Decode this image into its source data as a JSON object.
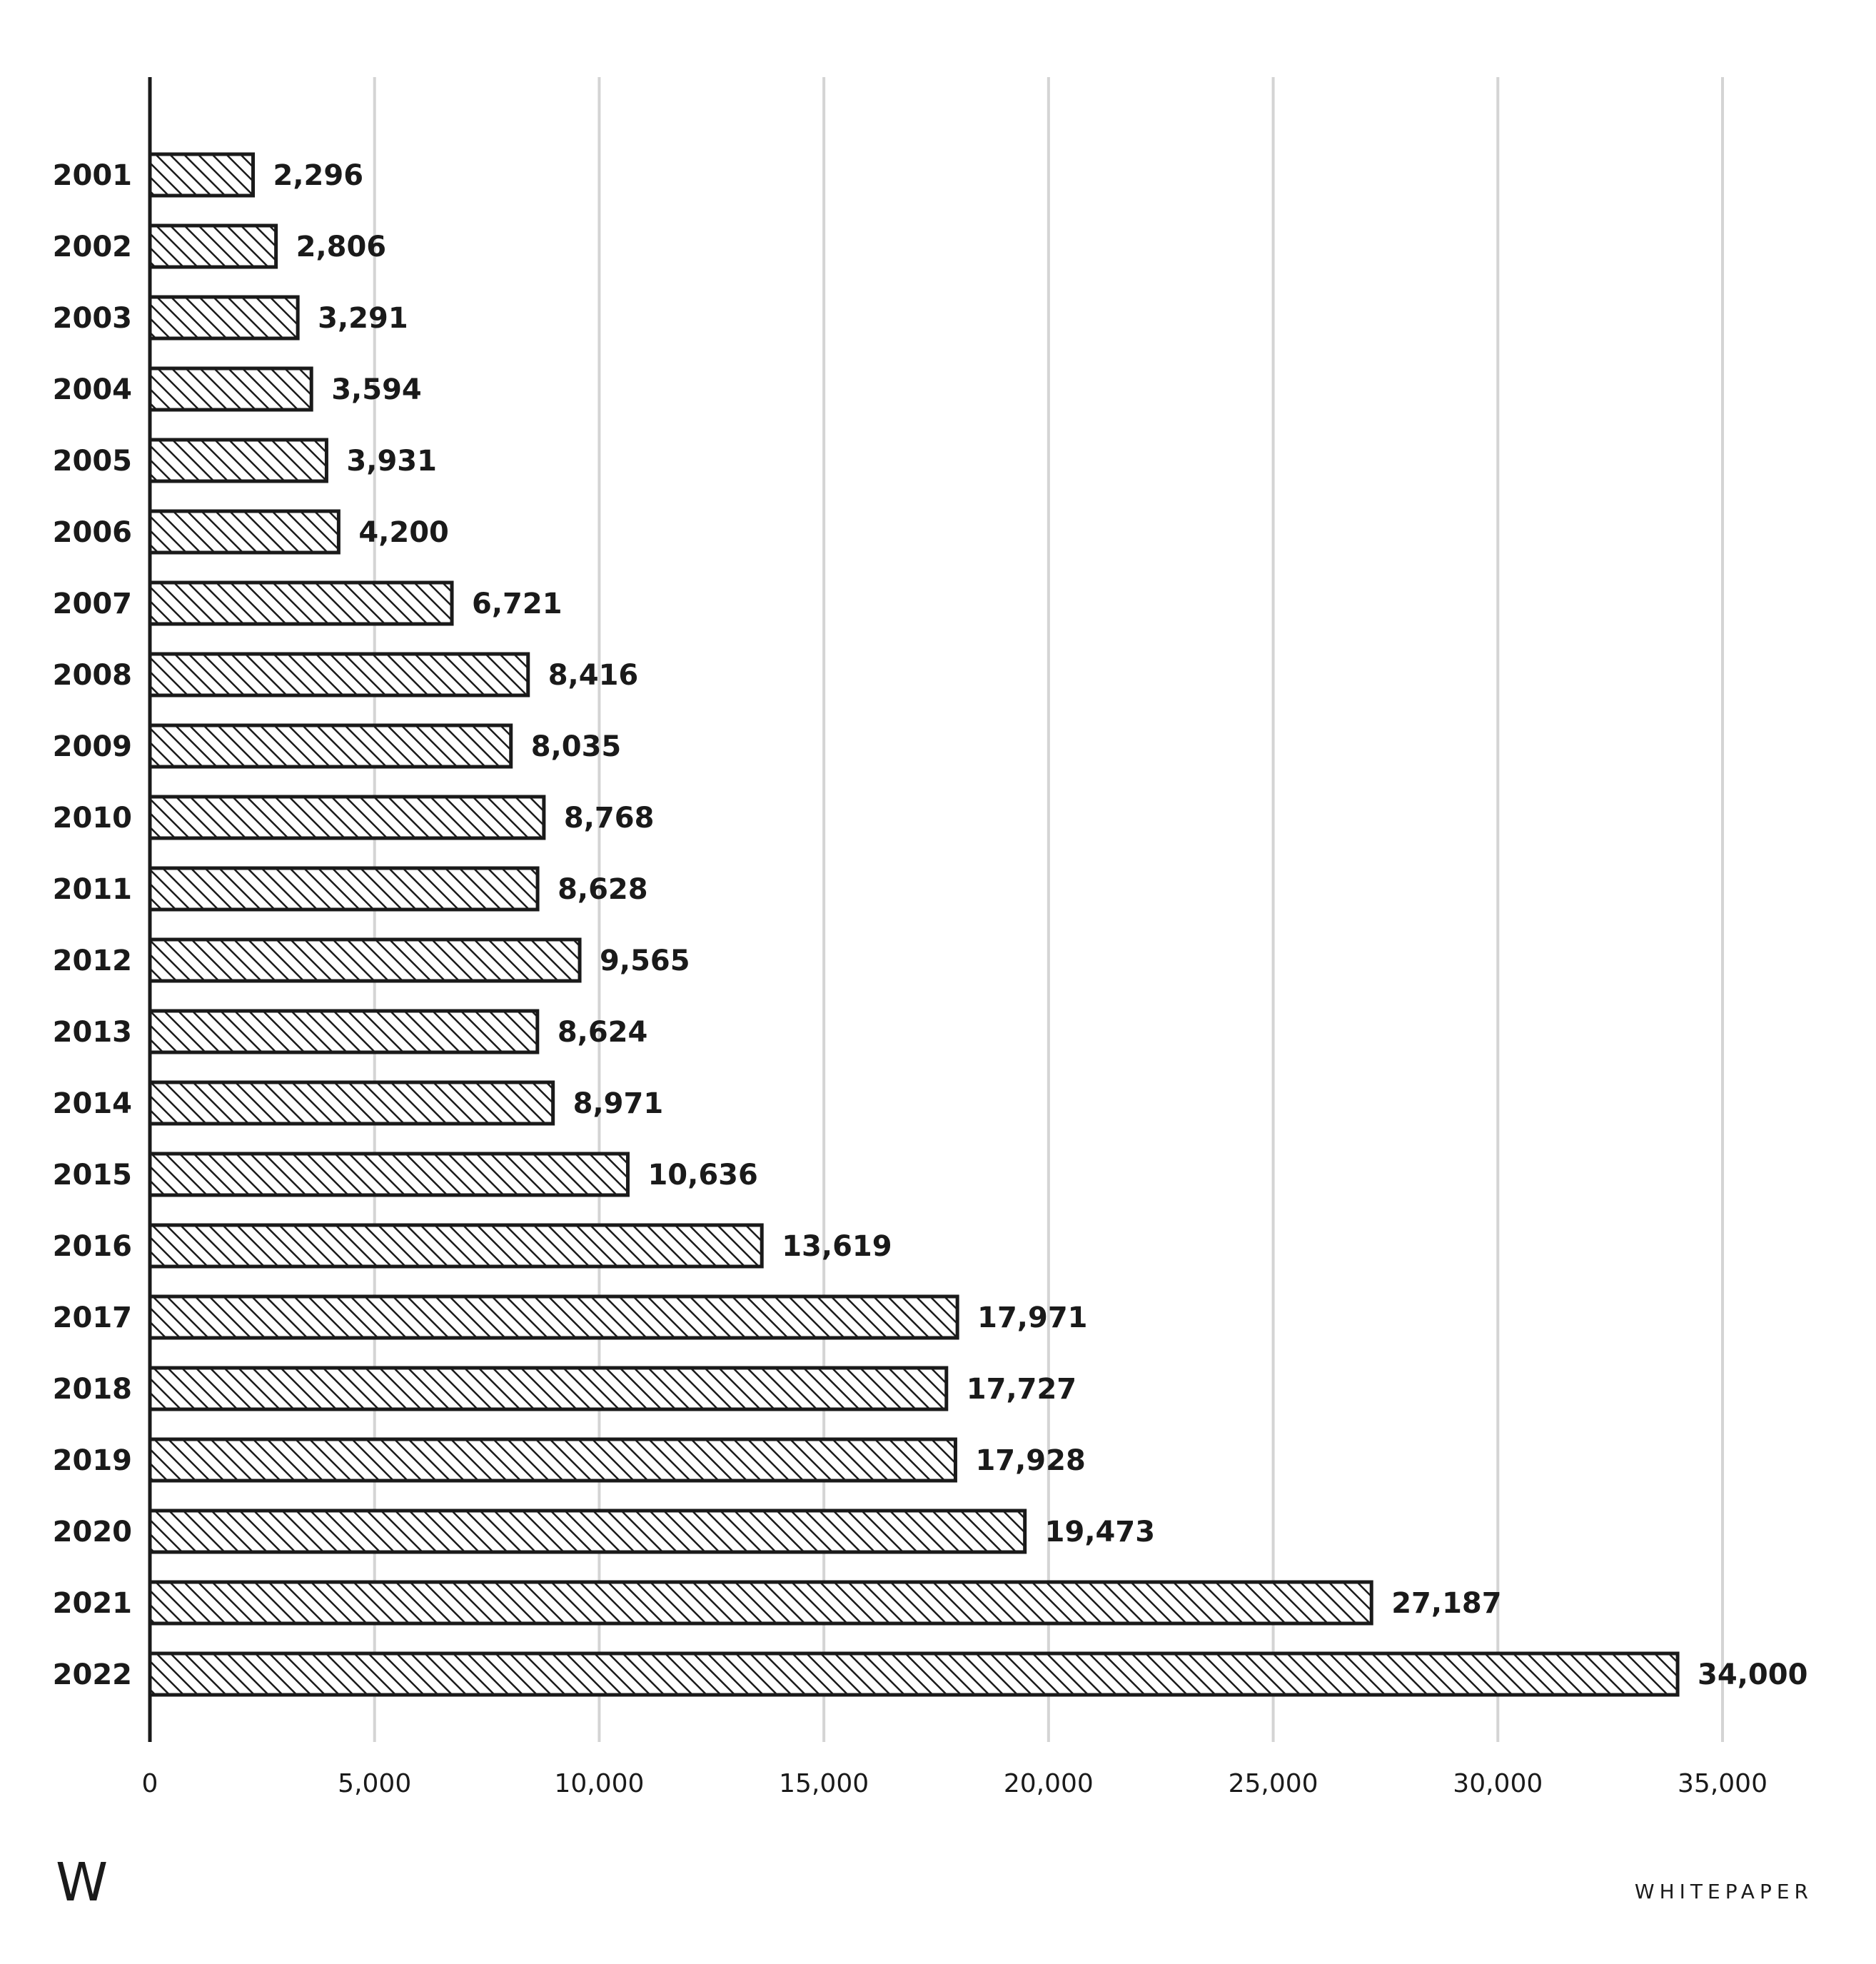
{
  "chart_data": {
    "type": "bar",
    "orientation": "horizontal",
    "categories": [
      "2001",
      "2002",
      "2003",
      "2004",
      "2005",
      "2006",
      "2007",
      "2008",
      "2009",
      "2010",
      "2011",
      "2012",
      "2013",
      "2014",
      "2015",
      "2016",
      "2017",
      "2018",
      "2019",
      "2020",
      "2021",
      "2022"
    ],
    "values": [
      2296,
      2806,
      3291,
      3594,
      3931,
      4200,
      6721,
      8416,
      8035,
      8768,
      8628,
      9565,
      8624,
      8971,
      10636,
      13619,
      17971,
      17727,
      17928,
      19473,
      27187,
      34000
    ],
    "value_labels": [
      "2,296",
      "2,806",
      "3,291",
      "3,594",
      "3,931",
      "4,200",
      "6,721",
      "8,416",
      "8,035",
      "8,768",
      "8,628",
      "9,565",
      "8,624",
      "8,971",
      "10,636",
      "13,619",
      "17,971",
      "17,727",
      "17,928",
      "19,473",
      "27,187",
      "34,000"
    ],
    "x_ticks": [
      0,
      5000,
      10000,
      15000,
      20000,
      25000,
      30000,
      35000
    ],
    "x_tick_labels": [
      "0",
      "5,000",
      "10,000",
      "15,000",
      "20,000",
      "25,000",
      "30,000",
      "35,000"
    ],
    "xlim": [
      0,
      35000
    ],
    "grid": true,
    "bar_fill": "hatched",
    "title": "",
    "xlabel": "",
    "ylabel": ""
  },
  "colors": {
    "ink": "#1a1a1a",
    "grid": "#d4d4d4",
    "background": "#ffffff"
  },
  "footer": {
    "logo": "W",
    "brand": "WHITEPAPER"
  }
}
